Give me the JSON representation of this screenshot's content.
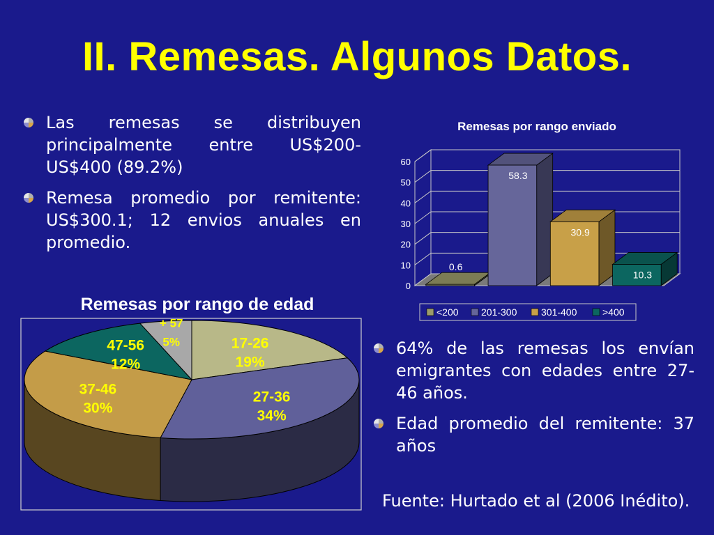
{
  "slide": {
    "title": "II. Remesas. Algunos Datos.",
    "bullets_left": [
      "Las remesas se distribuyen principalmente entre US$200-US$400 (89.2%)",
      "Remesa promedio por remitente: US$300.1; 12 envios anuales en promedio."
    ],
    "bullets_right": [
      "64% de las remesas los envían emigrantes con edades entre 27-46 años.",
      "Edad promedio del remitente: 37 años"
    ],
    "source": "Fuente: Hurtado et al (2006 Inédito)."
  },
  "chart_data": [
    {
      "type": "bar",
      "title": "Remesas por rango enviado",
      "categories": [
        "<200",
        "201-300",
        "301-400",
        ">400"
      ],
      "values": [
        0.6,
        58.3,
        30.9,
        10.3
      ],
      "value_labels": [
        "0.6",
        "58.3",
        "30.9",
        "10.3"
      ],
      "ylim": [
        0,
        60
      ],
      "yticks": [
        "0",
        "10",
        "20",
        "30",
        "40",
        "50",
        "60"
      ],
      "legend_position": "bottom",
      "grid": true,
      "colors": [
        "#9b9b6a",
        "#66669a",
        "#c8a048",
        "#0c6660"
      ]
    },
    {
      "type": "pie",
      "title": "Remesas por rango de edad",
      "labels": [
        "17-26",
        "27-36",
        "37-46",
        "47-56",
        "+ 57"
      ],
      "values": [
        19,
        34,
        30,
        12,
        5
      ],
      "value_labels": [
        "19%",
        "34%",
        "30%",
        "12%",
        "5%"
      ],
      "colors": [
        "#b8b888",
        "#60609a",
        "#c49c48",
        "#0c6660",
        "#a8a8a8"
      ],
      "label_color": "#ffff00"
    }
  ]
}
